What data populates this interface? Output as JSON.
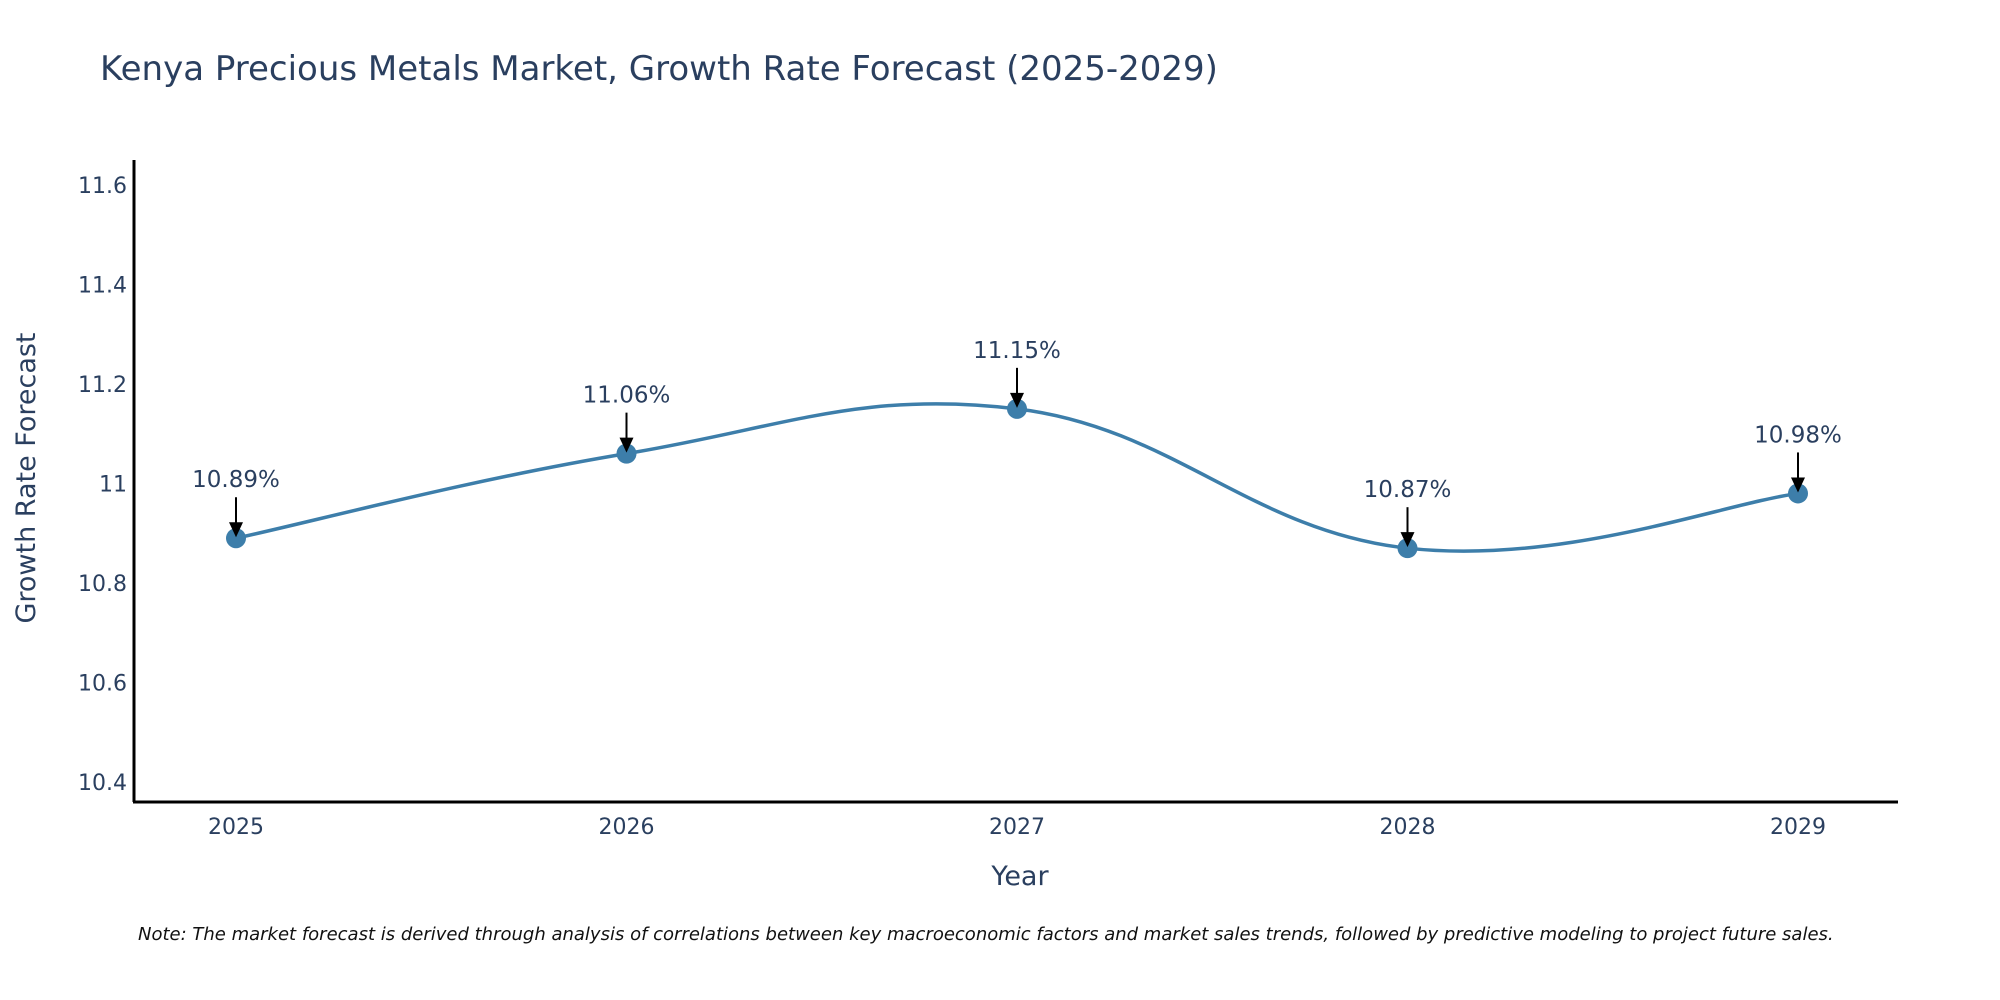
{
  "chart_data": {
    "type": "line",
    "title": "Kenya Precious Metals Market, Growth Rate Forecast (2025-2029)",
    "xlabel": "Year",
    "ylabel": "Growth Rate Forecast",
    "categories": [
      "2025",
      "2026",
      "2027",
      "2028",
      "2029"
    ],
    "values": [
      10.89,
      11.06,
      11.15,
      10.87,
      10.98
    ],
    "data_labels": [
      "10.89%",
      "11.06%",
      "11.15%",
      "10.87%",
      "10.98%"
    ],
    "ylim": [
      10.36,
      11.65
    ],
    "yticks": [
      10.4,
      10.6,
      10.8,
      11,
      11.2,
      11.4,
      11.6
    ],
    "ytick_labels": [
      "10.4",
      "10.6",
      "10.8",
      "11",
      "11.2",
      "11.4",
      "11.6"
    ],
    "grid": false,
    "line_shape": "spline",
    "line_color": "#3d7eaa",
    "marker_color": "#3d7eaa",
    "arrow_color": "#000000",
    "note": "Note: The market forecast is derived through analysis of correlations between key macroeconomic factors and market sales trends, followed by predictive modeling to project future sales."
  }
}
